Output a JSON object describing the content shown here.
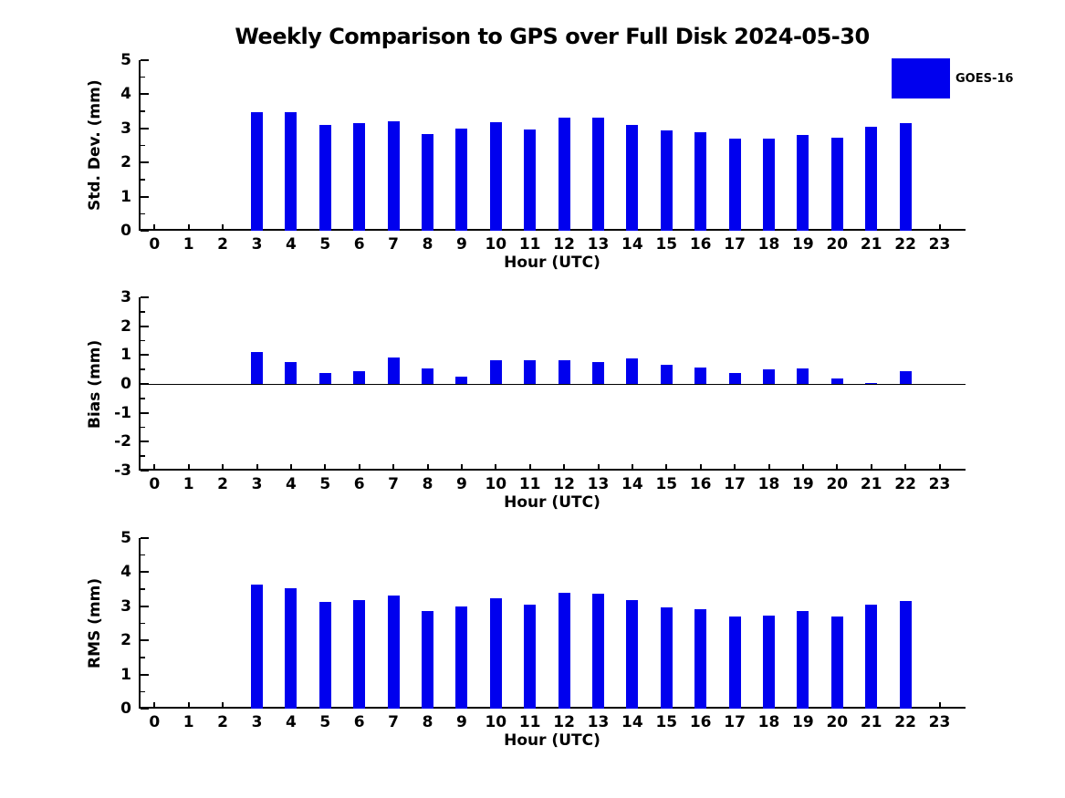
{
  "title": "Weekly Comparison to GPS over Full Disk 2024-05-30",
  "legend": {
    "label": "GOES-16",
    "color": "#0000EE",
    "position": "outside-top-right"
  },
  "colors": {
    "bar": "#0000EE",
    "axis": "#000000",
    "background": "#FFFFFF"
  },
  "chart_data": [
    {
      "type": "bar",
      "ylabel": "Std. Dev. (mm)",
      "xlabel": "Hour (UTC)",
      "ylim": [
        0,
        5
      ],
      "yticks": [
        0,
        1,
        2,
        3,
        4,
        5
      ],
      "minor_tick_step": 0.5,
      "grid": false,
      "categories": [
        0,
        1,
        2,
        3,
        4,
        5,
        6,
        7,
        8,
        9,
        10,
        11,
        12,
        13,
        14,
        15,
        16,
        17,
        18,
        19,
        20,
        21,
        22,
        23
      ],
      "series": [
        {
          "name": "GOES-16",
          "values": [
            null,
            null,
            null,
            3.47,
            3.48,
            3.11,
            3.15,
            3.21,
            2.83,
            2.99,
            3.17,
            2.96,
            3.32,
            3.31,
            3.11,
            2.95,
            2.9,
            2.7,
            2.7,
            2.82,
            2.72,
            3.06,
            3.15,
            null
          ]
        }
      ]
    },
    {
      "type": "bar",
      "ylabel": "Bias (mm)",
      "xlabel": "Hour (UTC)",
      "ylim": [
        -3,
        3
      ],
      "yticks": [
        -3,
        -2,
        -1,
        0,
        1,
        2,
        3
      ],
      "minor_tick_step": 0.5,
      "grid": false,
      "categories": [
        0,
        1,
        2,
        3,
        4,
        5,
        6,
        7,
        8,
        9,
        10,
        11,
        12,
        13,
        14,
        15,
        16,
        17,
        18,
        19,
        20,
        21,
        22,
        23
      ],
      "series": [
        {
          "name": "GOES-16",
          "values": [
            null,
            null,
            null,
            1.1,
            0.75,
            0.38,
            0.44,
            0.93,
            0.53,
            0.24,
            0.82,
            0.81,
            0.81,
            0.75,
            0.87,
            0.65,
            0.58,
            0.38,
            0.52,
            0.55,
            0.18,
            0.02,
            0.45,
            null
          ]
        }
      ]
    },
    {
      "type": "bar",
      "ylabel": "RMS (mm)",
      "xlabel": "Hour (UTC)",
      "ylim": [
        0,
        5
      ],
      "yticks": [
        0,
        1,
        2,
        3,
        4,
        5
      ],
      "minor_tick_step": 0.5,
      "grid": false,
      "categories": [
        0,
        1,
        2,
        3,
        4,
        5,
        6,
        7,
        8,
        9,
        10,
        11,
        12,
        13,
        14,
        15,
        16,
        17,
        18,
        19,
        20,
        21,
        22,
        23
      ],
      "series": [
        {
          "name": "GOES-16",
          "values": [
            null,
            null,
            null,
            3.64,
            3.54,
            3.12,
            3.17,
            3.32,
            2.85,
            3.0,
            3.24,
            3.05,
            3.4,
            3.36,
            3.17,
            2.97,
            2.92,
            2.7,
            2.73,
            2.87,
            2.7,
            3.05,
            3.15,
            null
          ]
        }
      ]
    }
  ]
}
